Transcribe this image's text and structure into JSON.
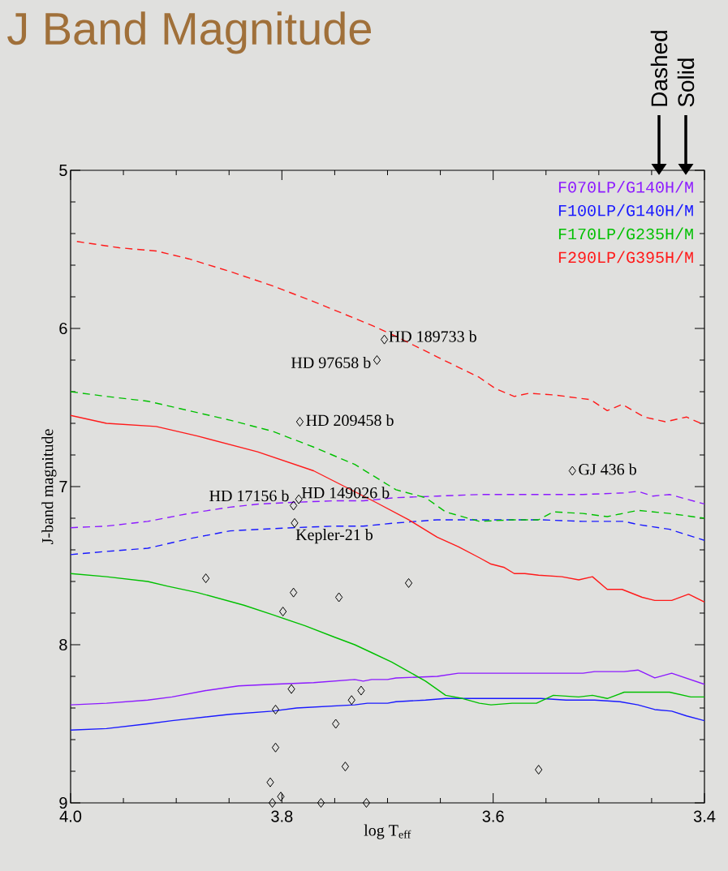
{
  "chart_data": {
    "type": "line",
    "title": "J Band Magnitude",
    "xlabel": "log T$_{eff}$",
    "ylabel": "J-band magnitude",
    "xlim": [
      4.0,
      3.4
    ],
    "ylim": [
      9,
      5
    ],
    "xticks": [
      {
        "value": 4.0,
        "label": "4.0"
      },
      {
        "value": 3.8,
        "label": "3.8"
      },
      {
        "value": 3.6,
        "label": "3.6"
      },
      {
        "value": 3.4,
        "label": "3.4"
      }
    ],
    "yticks": [
      5,
      6,
      7,
      8,
      9
    ],
    "legend": "top right",
    "series": [
      {
        "name": "F070LP/G140H/M",
        "color": "#8c1aff",
        "line_style": "dashed",
        "marker": "none",
        "x": [
          4.0,
          3.966,
          3.927,
          3.888,
          3.849,
          3.821,
          3.79,
          3.751,
          3.723,
          3.692,
          3.653,
          3.613,
          3.574,
          3.515,
          3.476,
          3.463,
          3.449,
          3.433,
          3.4
        ],
        "values": [
          7.26,
          7.25,
          7.22,
          7.17,
          7.13,
          7.11,
          7.1,
          7.09,
          7.09,
          7.07,
          7.06,
          7.05,
          7.05,
          7.05,
          7.04,
          7.03,
          7.06,
          7.05,
          7.11
        ]
      },
      {
        "name": "F100LP/G140H/M",
        "color": "#1a1aff",
        "line_style": "dashed",
        "marker": "none",
        "x": [
          4.0,
          3.966,
          3.927,
          3.888,
          3.849,
          3.821,
          3.79,
          3.751,
          3.723,
          3.692,
          3.653,
          3.613,
          3.574,
          3.555,
          3.515,
          3.476,
          3.463,
          3.433,
          3.4
        ],
        "values": [
          7.43,
          7.41,
          7.39,
          7.33,
          7.28,
          7.27,
          7.26,
          7.25,
          7.25,
          7.23,
          7.21,
          7.21,
          7.21,
          7.21,
          7.22,
          7.22,
          7.24,
          7.27,
          7.34
        ]
      },
      {
        "name": "F170LP/G235H/M",
        "color": "#00c000",
        "line_style": "dashed",
        "marker": "none",
        "x": [
          4.0,
          3.966,
          3.927,
          3.888,
          3.849,
          3.809,
          3.77,
          3.731,
          3.692,
          3.664,
          3.645,
          3.613,
          3.582,
          3.557,
          3.543,
          3.515,
          3.492,
          3.463,
          3.433,
          3.4
        ],
        "values": [
          6.4,
          6.43,
          6.46,
          6.52,
          6.58,
          6.65,
          6.75,
          6.86,
          7.02,
          7.07,
          7.16,
          7.22,
          7.21,
          7.21,
          7.16,
          7.17,
          7.19,
          7.15,
          7.17,
          7.2
        ]
      },
      {
        "name": "F290LP/G395H/M",
        "color": "#ff1a1a",
        "line_style": "dashed",
        "marker": "none",
        "x": [
          3.994,
          3.954,
          3.919,
          3.888,
          3.849,
          3.809,
          3.77,
          3.715,
          3.692,
          3.653,
          3.613,
          3.598,
          3.58,
          3.566,
          3.543,
          3.508,
          3.492,
          3.478,
          3.457,
          3.437,
          3.417,
          3.4
        ],
        "values": [
          5.45,
          5.49,
          5.51,
          5.56,
          5.64,
          5.73,
          5.83,
          5.98,
          6.05,
          6.18,
          6.31,
          6.38,
          6.43,
          6.41,
          6.42,
          6.45,
          6.52,
          6.48,
          6.56,
          6.59,
          6.56,
          6.61
        ]
      },
      {
        "color": "#8c1aff",
        "line_style": "solid",
        "marker": "none",
        "x": [
          4.0,
          3.966,
          3.927,
          3.904,
          3.872,
          3.841,
          3.809,
          3.77,
          3.731,
          3.723,
          3.715,
          3.7,
          3.692,
          3.653,
          3.633,
          3.594,
          3.569,
          3.555,
          3.515,
          3.504,
          3.476,
          3.463,
          3.447,
          3.431,
          3.4
        ],
        "values": [
          8.38,
          8.37,
          8.35,
          8.33,
          8.29,
          8.26,
          8.25,
          8.24,
          8.22,
          8.23,
          8.22,
          8.22,
          8.21,
          8.2,
          8.18,
          8.18,
          8.18,
          8.18,
          8.18,
          8.17,
          8.17,
          8.16,
          8.21,
          8.18,
          8.25
        ]
      },
      {
        "color": "#1a1aff",
        "line_style": "solid",
        "marker": "none",
        "x": [
          4.0,
          3.966,
          3.927,
          3.904,
          3.849,
          3.809,
          3.786,
          3.731,
          3.719,
          3.7,
          3.692,
          3.664,
          3.645,
          3.613,
          3.555,
          3.531,
          3.504,
          3.48,
          3.463,
          3.447,
          3.431,
          3.417,
          3.4
        ],
        "values": [
          8.54,
          8.53,
          8.5,
          8.48,
          8.44,
          8.42,
          8.4,
          8.38,
          8.37,
          8.37,
          8.36,
          8.35,
          8.34,
          8.34,
          8.34,
          8.35,
          8.35,
          8.36,
          8.38,
          8.41,
          8.42,
          8.45,
          8.48
        ]
      },
      {
        "color": "#00c000",
        "line_style": "solid",
        "marker": "none",
        "x": [
          4.0,
          3.966,
          3.927,
          3.908,
          3.88,
          3.836,
          3.809,
          3.778,
          3.751,
          3.731,
          3.715,
          3.696,
          3.68,
          3.664,
          3.645,
          3.629,
          3.613,
          3.602,
          3.582,
          3.559,
          3.543,
          3.519,
          3.506,
          3.492,
          3.476,
          3.449,
          3.433,
          3.413,
          3.4
        ],
        "values": [
          7.55,
          7.57,
          7.6,
          7.63,
          7.67,
          7.75,
          7.81,
          7.88,
          7.95,
          8.0,
          8.05,
          8.11,
          8.17,
          8.23,
          8.32,
          8.34,
          8.37,
          8.38,
          8.37,
          8.37,
          8.32,
          8.33,
          8.32,
          8.34,
          8.3,
          8.3,
          8.3,
          8.33,
          8.33
        ]
      },
      {
        "color": "#ff1a1a",
        "line_style": "solid",
        "marker": "none",
        "x": [
          4.0,
          3.966,
          3.919,
          3.88,
          3.823,
          3.77,
          3.711,
          3.68,
          3.653,
          3.633,
          3.613,
          3.602,
          3.59,
          3.58,
          3.57,
          3.557,
          3.535,
          3.519,
          3.506,
          3.492,
          3.478,
          3.459,
          3.447,
          3.431,
          3.415,
          3.4
        ],
        "values": [
          6.55,
          6.6,
          6.62,
          6.68,
          6.78,
          6.9,
          7.1,
          7.21,
          7.32,
          7.38,
          7.45,
          7.49,
          7.51,
          7.55,
          7.55,
          7.56,
          7.57,
          7.59,
          7.57,
          7.65,
          7.65,
          7.7,
          7.72,
          7.72,
          7.68,
          7.73
        ]
      },
      {
        "type": "scatter",
        "color": "#000000",
        "marker": "diamond",
        "x": [
          3.703,
          3.71,
          3.783,
          3.525,
          3.784,
          3.789,
          3.788,
          3.872,
          3.789,
          3.746,
          3.68,
          3.799,
          3.791,
          3.725,
          3.734,
          3.806,
          3.749,
          3.806,
          3.74,
          3.557,
          3.811,
          3.801,
          3.809,
          3.763,
          3.72
        ],
        "values": [
          6.07,
          6.2,
          6.59,
          6.9,
          7.08,
          7.12,
          7.23,
          7.58,
          7.67,
          7.7,
          7.61,
          7.79,
          8.28,
          8.29,
          8.35,
          8.41,
          8.5,
          8.65,
          8.77,
          8.79,
          8.87,
          8.96,
          9.0,
          9.0,
          9.0
        ]
      }
    ],
    "annotations": [
      {
        "text": "HD 189733 b",
        "x": 3.703,
        "y": 6.07
      },
      {
        "text": "HD 97658 b",
        "x": 3.71,
        "y": 6.2
      },
      {
        "text": "HD 209458 b",
        "x": 3.783,
        "y": 6.59
      },
      {
        "text": "GJ 436 b",
        "x": 3.525,
        "y": 6.9
      },
      {
        "text": "HD 149026 b",
        "x": 3.784,
        "y": 7.08
      },
      {
        "text": "HD 17156 b",
        "x": 3.789,
        "y": 7.12
      },
      {
        "text": "Kepler-21 b",
        "x": 3.788,
        "y": 7.23
      },
      "Dashed",
      "Solid"
    ]
  }
}
